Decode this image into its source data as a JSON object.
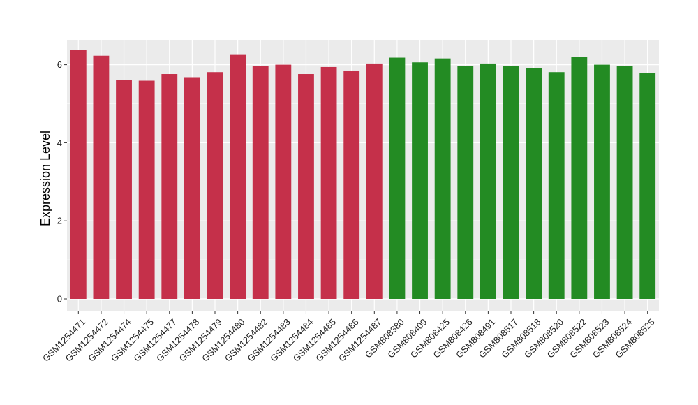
{
  "chart_data": {
    "type": "bar",
    "title": "",
    "xlabel": "",
    "ylabel": "Expression Level",
    "ylim": [
      0,
      6.6
    ],
    "yticks": [
      0,
      2,
      4,
      6
    ],
    "grid": true,
    "legend": "none",
    "colors": {
      "group1": "#c5304a",
      "group2": "#238b23",
      "panel_bg": "#ebebeb",
      "grid": "#ffffff"
    },
    "categories": [
      "GSM1254471",
      "GSM1254472",
      "GSM1254474",
      "GSM1254475",
      "GSM1254477",
      "GSM1254478",
      "GSM1254479",
      "GSM1254480",
      "GSM1254482",
      "GSM1254483",
      "GSM1254484",
      "GSM1254485",
      "GSM1254486",
      "GSM1254487",
      "GSM808380",
      "GSM808409",
      "GSM808425",
      "GSM808426",
      "GSM808491",
      "GSM808517",
      "GSM808518",
      "GSM808520",
      "GSM808522",
      "GSM808523",
      "GSM808524",
      "GSM808525"
    ],
    "values": [
      6.37,
      6.23,
      5.61,
      5.59,
      5.76,
      5.68,
      5.81,
      6.25,
      5.97,
      6.0,
      5.76,
      5.94,
      5.85,
      6.03,
      6.18,
      6.06,
      6.16,
      5.96,
      6.03,
      5.96,
      5.92,
      5.81,
      6.2,
      6.0,
      5.96,
      5.78
    ],
    "groups": [
      "group1",
      "group1",
      "group1",
      "group1",
      "group1",
      "group1",
      "group1",
      "group1",
      "group1",
      "group1",
      "group1",
      "group1",
      "group1",
      "group1",
      "group2",
      "group2",
      "group2",
      "group2",
      "group2",
      "group2",
      "group2",
      "group2",
      "group2",
      "group2",
      "group2",
      "group2"
    ]
  }
}
